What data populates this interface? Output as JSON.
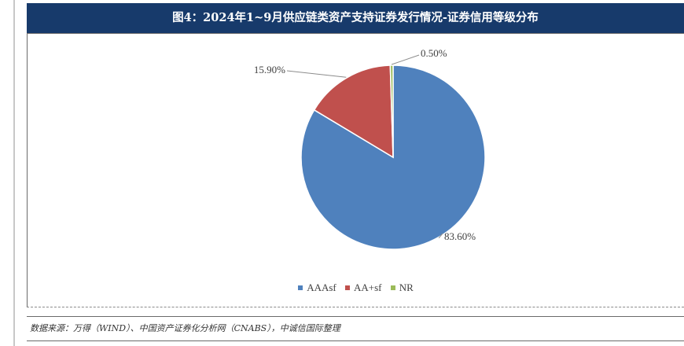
{
  "title": "图4：2024年1~9月供应链类资产支持证券发行情况-证券信用等级分布",
  "source": "数据来源：万得（WIND）、中国资产证券化分析网（CNABS），中诚信国际整理",
  "chart_data": {
    "type": "pie",
    "categories": [
      "AAAsf",
      "AA+sf",
      "NR"
    ],
    "values": [
      83.6,
      15.9,
      0.5
    ],
    "labels": [
      "83.60%",
      "15.90%",
      "0.50%"
    ],
    "colors": [
      "#4f81bd",
      "#c0504d",
      "#9bbb59"
    ],
    "legend_position": "bottom"
  }
}
